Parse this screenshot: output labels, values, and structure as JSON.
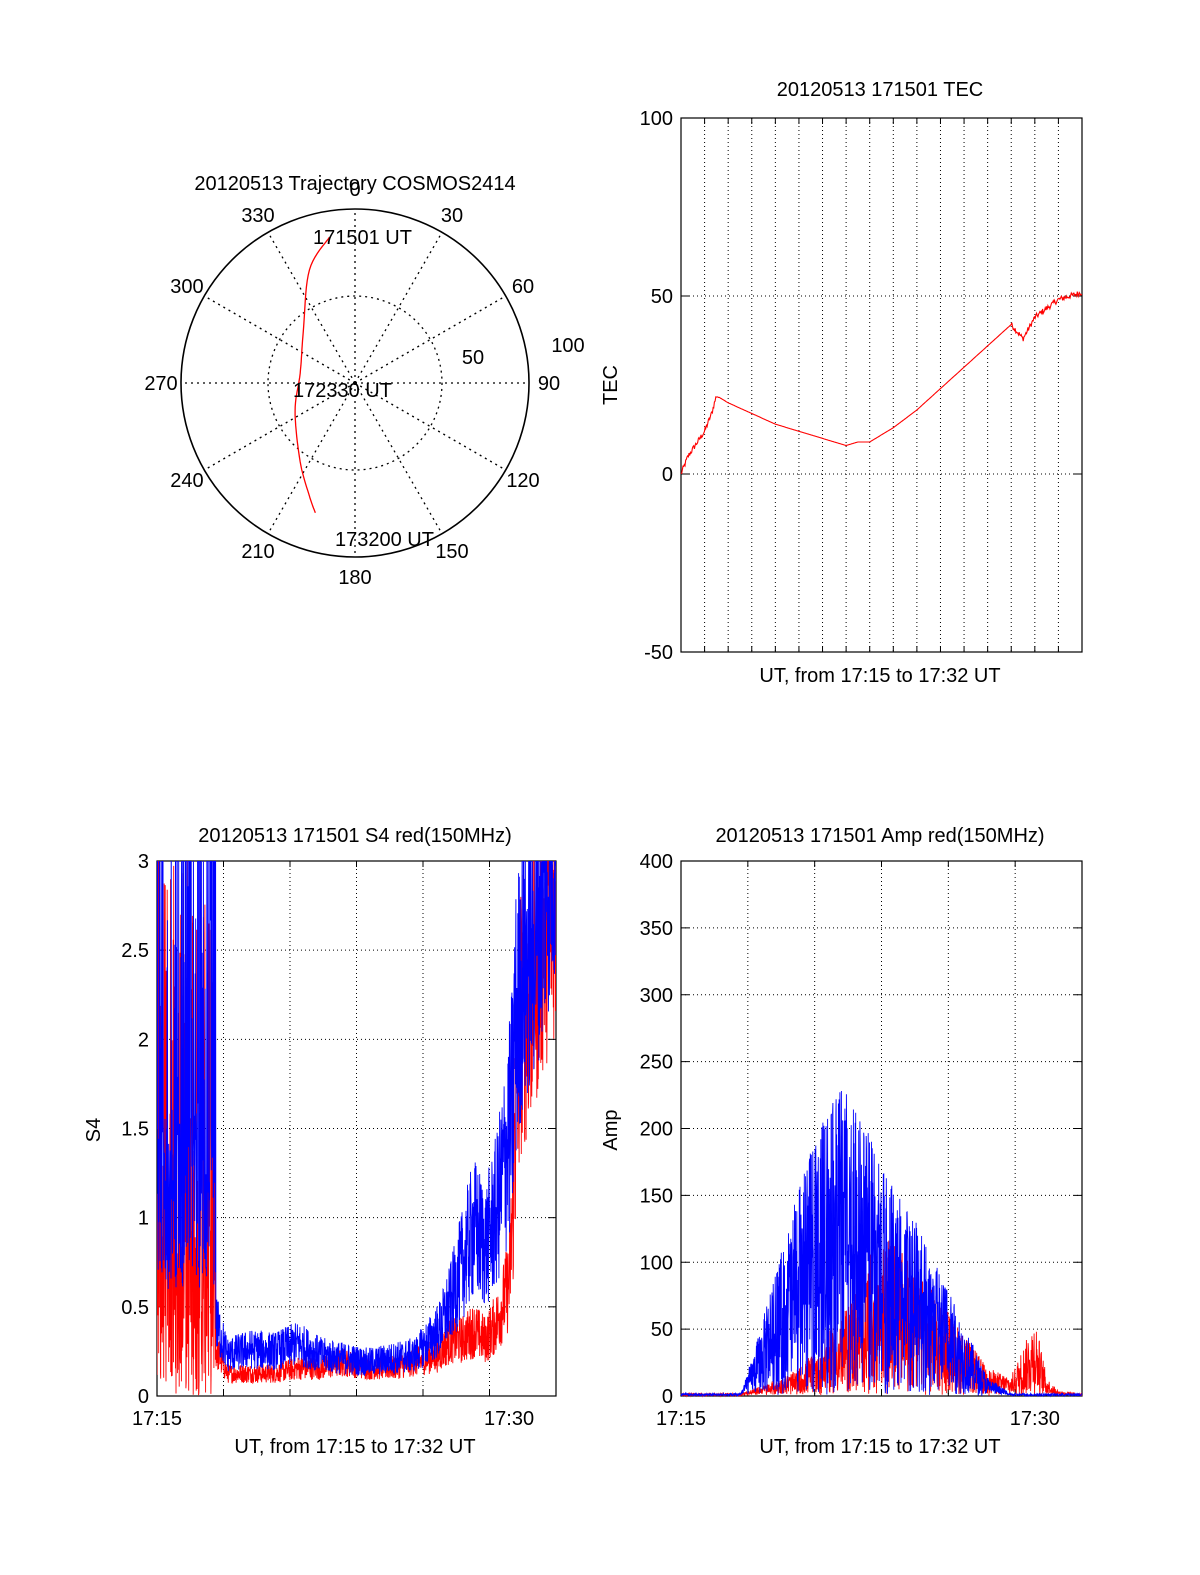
{
  "colors": {
    "red": "#ff0000",
    "blue": "#0000ff",
    "axis": "#000000",
    "grid": "#000000"
  },
  "panels": {
    "polar": {
      "title": "20120513 Trajectory COSMOS2414",
      "angle_labels": [
        "0",
        "30",
        "60",
        "90",
        "120",
        "150",
        "180",
        "210",
        "240",
        "270",
        "300",
        "330"
      ],
      "radius_labels": [
        "50",
        "100"
      ],
      "annotations": [
        "171501 UT",
        "172330 UT",
        "173200 UT"
      ]
    },
    "tec": {
      "title": "20120513 171501 TEC",
      "ylabel": "TEC",
      "xlabel": "UT, from 17:15 to 17:32 UT",
      "yticks": [
        "100",
        "50",
        "0",
        "-50"
      ]
    },
    "s4": {
      "title": "20120513 171501 S4 red(150MHz)",
      "ylabel": "S4",
      "xlabel": "UT, from 17:15 to 17:32 UT",
      "yticks": [
        "3",
        "2.5",
        "2",
        "1.5",
        "1",
        "0.5",
        "0"
      ],
      "xticks": [
        "17:15",
        "17:30"
      ]
    },
    "amp": {
      "title": "20120513 171501 Amp red(150MHz)",
      "ylabel": "Amp",
      "xlabel": "UT, from 17:15 to 17:32 UT",
      "yticks": [
        "400",
        "350",
        "300",
        "250",
        "200",
        "150",
        "100",
        "50",
        "0"
      ],
      "xticks": [
        "17:15",
        "17:30"
      ]
    }
  },
  "chart_data": [
    {
      "type": "polar-trajectory",
      "title": "20120513 Trajectory COSMOS2414",
      "rlim": [
        0,
        100
      ],
      "angle_ticks_deg": [
        0,
        30,
        60,
        90,
        120,
        150,
        180,
        210,
        240,
        270,
        300,
        330
      ],
      "radius_ticks": [
        50,
        100
      ],
      "series": [
        {
          "color": "red",
          "points_az_r": [
            [
              -10,
              85
            ],
            [
              -22,
              70
            ],
            [
              -45,
              42
            ],
            [
              -80,
              32
            ],
            [
              -115,
              38
            ],
            [
              -145,
              55
            ],
            [
              -158,
              70
            ],
            [
              -163,
              78
            ]
          ]
        }
      ],
      "annotations": [
        {
          "text": "171501 UT",
          "az": -10,
          "r": 85
        },
        {
          "text": "172330 UT",
          "az": -80,
          "r": 32
        },
        {
          "text": "173200 UT",
          "az": -163,
          "r": 78
        }
      ]
    },
    {
      "type": "line",
      "title": "20120513 171501 TEC",
      "xlabel": "UT, from 17:15 to 17:32 UT",
      "ylabel": "TEC",
      "xlim": [
        0,
        17
      ],
      "ylim": [
        -50,
        100
      ],
      "grid": true,
      "series": [
        {
          "color": "red",
          "x": [
            0,
            0.3,
            0.6,
            1.0,
            1.3,
            1.5,
            2.0,
            3.0,
            4.0,
            5.0,
            6.0,
            7.0,
            7.5,
            8.0,
            9.0,
            10.0,
            11.0,
            12.0,
            13.0,
            14.0,
            14.5,
            15.0,
            16.0,
            17.0
          ],
          "y": [
            0,
            5,
            8,
            12,
            17,
            22,
            20,
            17,
            14,
            12,
            10,
            8,
            9,
            9,
            13,
            18,
            24,
            30,
            36,
            42,
            38,
            44,
            49,
            51
          ]
        }
      ]
    },
    {
      "type": "line",
      "title": "20120513 171501 S4 red(150MHz)",
      "xlabel": "UT, from 17:15 to 17:32 UT",
      "ylabel": "S4",
      "xlim": [
        0,
        17
      ],
      "ylim": [
        0,
        3
      ],
      "xticks": [
        "17:15",
        "17:30"
      ],
      "grid": true,
      "series": [
        {
          "color": "blue",
          "x": [
            0,
            0.5,
            1.0,
            2.0,
            2.5,
            3.0,
            4.0,
            5.0,
            6.0,
            7.0,
            8.0,
            9.0,
            10.0,
            11.0,
            12.0,
            12.5,
            13.0,
            13.5,
            14.0,
            14.5,
            15.0,
            15.5,
            16.0,
            16.5,
            17.0
          ],
          "y": [
            1.8,
            2.2,
            1.5,
            1.6,
            0.4,
            0.22,
            0.25,
            0.24,
            0.28,
            0.22,
            0.2,
            0.18,
            0.2,
            0.22,
            0.35,
            0.5,
            0.7,
            0.9,
            0.8,
            1.0,
            1.4,
            2.0,
            2.2,
            2.5,
            2.8
          ]
        },
        {
          "color": "red",
          "x": [
            0,
            0.5,
            1.0,
            2.0,
            2.5,
            3.0,
            4.0,
            5.0,
            6.0,
            7.0,
            8.0,
            9.0,
            10.0,
            11.0,
            12.0,
            12.5,
            13.0,
            13.5,
            14.0,
            14.5,
            15.0,
            15.5,
            16.0,
            16.5,
            17.0
          ],
          "y": [
            0.8,
            1.2,
            0.9,
            1.1,
            0.25,
            0.12,
            0.12,
            0.12,
            0.15,
            0.15,
            0.18,
            0.15,
            0.15,
            0.18,
            0.22,
            0.3,
            0.3,
            0.35,
            0.3,
            0.4,
            0.6,
            1.8,
            2.0,
            2.3,
            2.5
          ]
        }
      ]
    },
    {
      "type": "line",
      "title": "20120513 171501 Amp red(150MHz)",
      "xlabel": "UT, from 17:15 to 17:32 UT",
      "ylabel": "Amp",
      "xlim": [
        0,
        17
      ],
      "ylim": [
        0,
        400
      ],
      "xticks": [
        "17:15",
        "17:30"
      ],
      "grid": true,
      "series": [
        {
          "color": "red",
          "x": [
            0,
            2.5,
            3.0,
            4.0,
            5.0,
            6.0,
            7.0,
            8.0,
            9.0,
            10.0,
            11.0,
            12.0,
            13.0,
            14.0,
            15.0,
            15.5,
            16.0,
            17.0
          ],
          "y": [
            0,
            0,
            3,
            8,
            15,
            30,
            50,
            80,
            90,
            70,
            55,
            35,
            15,
            10,
            45,
            10,
            2,
            0
          ]
        },
        {
          "color": "blue",
          "x": [
            0,
            2.5,
            3.0,
            4.0,
            5.0,
            6.0,
            7.0,
            8.0,
            9.0,
            10.0,
            11.0,
            12.0,
            13.0,
            14.0,
            15.0,
            16.0,
            17.0
          ],
          "y": [
            0,
            0,
            20,
            70,
            120,
            160,
            180,
            150,
            120,
            100,
            70,
            40,
            10,
            0,
            0,
            0,
            0
          ]
        }
      ]
    }
  ]
}
